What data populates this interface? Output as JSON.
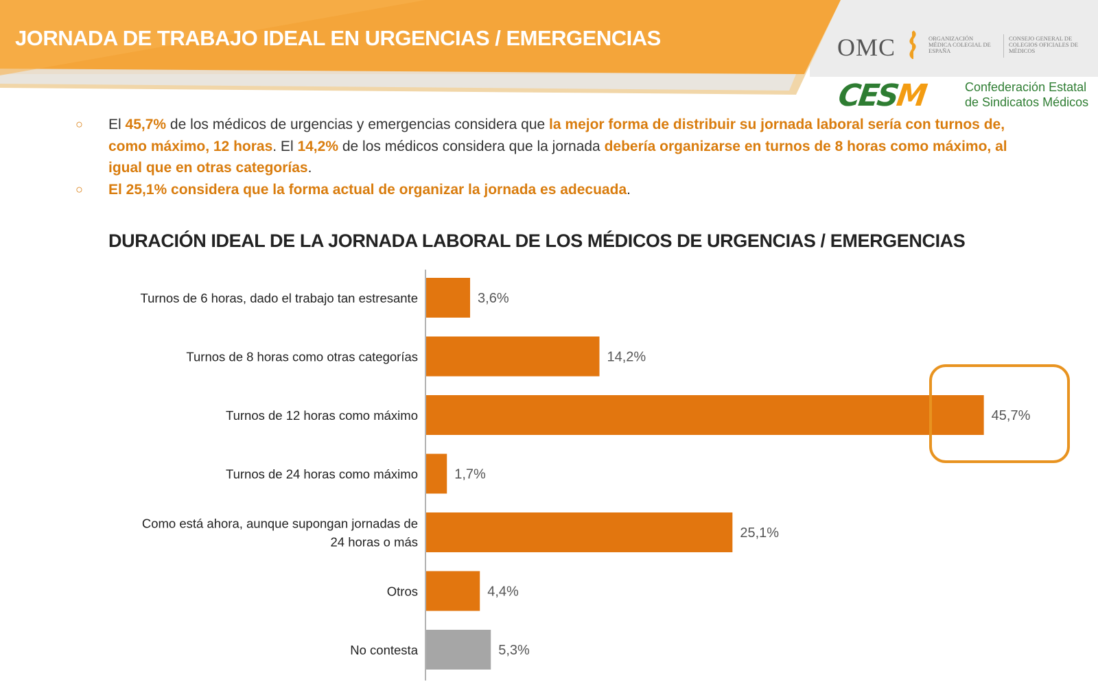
{
  "header": {
    "title": "JORNADA DE TRABAJO IDEAL EN URGENCIAS / EMERGENCIAS",
    "colors": {
      "banner": "#f4a53a",
      "banner_dark": "#e69414",
      "banner_gray": "#e9e9e9"
    }
  },
  "logos": {
    "omc_text": "OMC",
    "omc_org": "Organización Médica Colegial de España",
    "omc_consejo": "Consejo General de Colegios Oficiales de Médicos",
    "cesm_mark": "CESM",
    "cesm_name_line1": "Confederación Estatal",
    "cesm_name_line2": "de Sindicatos Médicos"
  },
  "bullets": [
    {
      "t1": "El ",
      "h1": "45,7%",
      "t2": " de los médicos de urgencias y emergencias considera que ",
      "h2": "la mejor forma de distribuir su jornada laboral sería con turnos de, como máximo, 12 horas",
      "t3": ". El ",
      "h3": "14,2%",
      "t4": " de los médicos considera que la jornada ",
      "h4": "debería organizarse en turnos de 8 horas como máximo, al igual que en otras categorías",
      "t5": "."
    },
    {
      "h1": "El 25,1% considera que la forma actual de organizar la jornada es adecuada",
      "t1": "."
    }
  ],
  "chart_data": {
    "type": "bar",
    "orientation": "horizontal",
    "title": "DURACIÓN IDEAL DE LA JORNADA LABORAL DE LOS MÉDICOS DE URGENCIAS / EMERGENCIAS",
    "categories": [
      [
        "Turnos de 6 horas, dado el trabajo tan estresante"
      ],
      [
        "Turnos de 8 horas como otras categorías"
      ],
      [
        "Turnos de 12 horas como máximo"
      ],
      [
        "Turnos de 24 horas como máximo"
      ],
      [
        "Como está ahora, aunque supongan jornadas de",
        "24 horas o más"
      ],
      [
        "Otros"
      ],
      [
        "No contesta"
      ]
    ],
    "values": [
      3.6,
      14.2,
      45.7,
      1.7,
      25.1,
      4.4,
      5.3
    ],
    "value_labels": [
      "3,6%",
      "14,2%",
      "45,7%",
      "1,7%",
      "25,1%",
      "4,4%",
      "5,3%"
    ],
    "bar_colors": [
      "#e2760f",
      "#e2760f",
      "#e2760f",
      "#e2760f",
      "#e2760f",
      "#e2760f",
      "#a6a6a6"
    ],
    "highlighted_category_index": 2,
    "highlight_color": "#e89320",
    "xlim": [
      0,
      46
    ],
    "grid": false,
    "legend": "none"
  }
}
